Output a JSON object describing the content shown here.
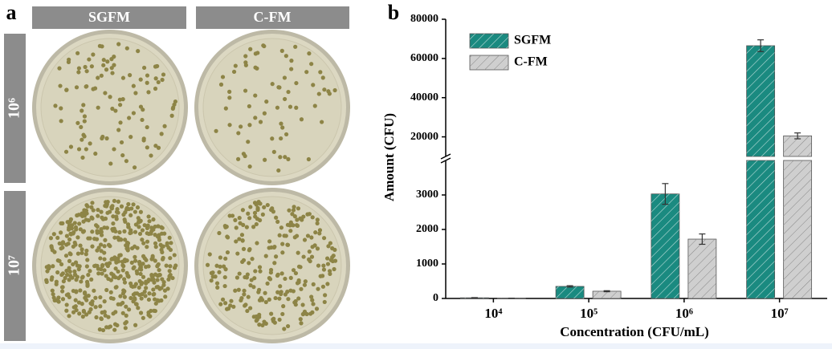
{
  "panel_a": {
    "label": "a",
    "columns": [
      "SGFM",
      "C-FM"
    ],
    "rows": [
      "10⁶",
      "10⁷"
    ]
  },
  "chart_data": {
    "type": "bar",
    "panel_label": "b",
    "x_label": "Concentration (CFU/mL)",
    "y_label": "Amount (CFU)",
    "categories": [
      "10⁴",
      "10⁵",
      "10⁶",
      "10⁷"
    ],
    "series": [
      {
        "name": "SGFM",
        "color": "#1a8a80",
        "values": [
          20,
          350,
          3030,
          66500
        ],
        "errors": [
          5,
          20,
          300,
          3000
        ]
      },
      {
        "name": "C-FM",
        "color": "#cfcfcf",
        "values": [
          5,
          210,
          1720,
          20500
        ],
        "errors": [
          2,
          15,
          150,
          1500
        ]
      }
    ],
    "ylim_lower": [
      0,
      4000
    ],
    "yticks_lower": [
      0,
      1000,
      2000,
      3000
    ],
    "ylim_upper": [
      10000,
      80000
    ],
    "yticks_upper": [
      20000,
      40000,
      60000,
      80000
    ],
    "legend": "upper left"
  }
}
